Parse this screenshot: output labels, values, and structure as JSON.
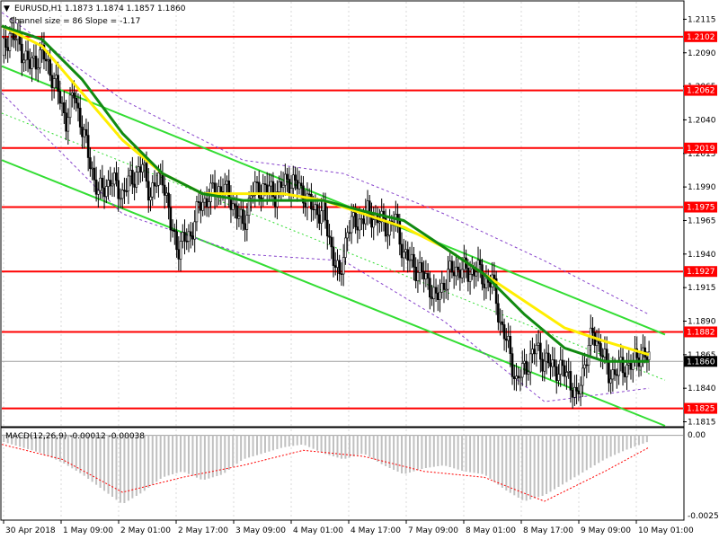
{
  "header": {
    "symbol_line": "EURUSD,H1  1.1873 1.1874 1.1857 1.1860",
    "channel_line": "Channel size = 86 Slope = -1.17"
  },
  "macd": {
    "label": "MACD(12,26,9) -0.00012 -0.00038",
    "ticks": [
      "0.00",
      "-0.00255"
    ]
  },
  "chart_data": [
    {
      "type": "candlestick",
      "title": "",
      "y_ticks": [
        "1.2115",
        "1.2090",
        "1.2065",
        "1.2040",
        "1.2015",
        "1.1990",
        "1.1965",
        "1.1940",
        "1.1915",
        "1.1890",
        "1.1865",
        "1.1840",
        "1.1815"
      ],
      "x_labels": [
        "30 Apr 2018",
        "1 May 09:00",
        "2 May 01:00",
        "2 May 17:00",
        "3 May 09:00",
        "4 May 01:00",
        "4 May 17:00",
        "7 May 09:00",
        "8 May 01:00",
        "8 May 17:00",
        "9 May 09:00",
        "10 May 01:00"
      ],
      "ylim": [
        1.1812,
        1.2128
      ],
      "levels": [
        "1.2102",
        "1.2062",
        "1.2019",
        "1.1975",
        "1.1927",
        "1.1882",
        "1.1825"
      ],
      "current_price": "1.1860",
      "close_path": [
        [
          0,
          1.2088
        ],
        [
          4,
          1.2105
        ],
        [
          8,
          1.2098
        ],
        [
          14,
          1.208
        ],
        [
          20,
          1.209
        ],
        [
          26,
          1.207
        ],
        [
          32,
          1.204
        ],
        [
          36,
          1.206
        ],
        [
          42,
          1.202
        ],
        [
          48,
          1.1985
        ],
        [
          54,
          1.1995
        ],
        [
          60,
          1.1985
        ],
        [
          64,
          1.1995
        ],
        [
          70,
          1.2005
        ],
        [
          74,
          1.1985
        ],
        [
          80,
          1.2
        ],
        [
          84,
          1.196
        ],
        [
          88,
          1.1945
        ],
        [
          94,
          1.1955
        ],
        [
          98,
          1.1975
        ],
        [
          104,
          1.1985
        ],
        [
          110,
          1.199
        ],
        [
          116,
          1.1975
        ],
        [
          120,
          1.196
        ],
        [
          124,
          1.1985
        ],
        [
          130,
          1.199
        ],
        [
          136,
          1.1985
        ],
        [
          142,
          1.1995
        ],
        [
          148,
          1.199
        ],
        [
          154,
          1.1975
        ],
        [
          160,
          1.197
        ],
        [
          164,
          1.1945
        ],
        [
          168,
          1.192
        ],
        [
          172,
          1.196
        ],
        [
          178,
          1.1965
        ],
        [
          182,
          1.197
        ],
        [
          188,
          1.1965
        ],
        [
          192,
          1.196
        ],
        [
          196,
          1.1965
        ],
        [
          200,
          1.194
        ],
        [
          206,
          1.193
        ],
        [
          212,
          1.192
        ],
        [
          216,
          1.1905
        ],
        [
          222,
          1.1925
        ],
        [
          228,
          1.193
        ],
        [
          232,
          1.1925
        ],
        [
          236,
          1.193
        ],
        [
          240,
          1.192
        ],
        [
          244,
          1.192
        ],
        [
          248,
          1.189
        ],
        [
          252,
          1.187
        ],
        [
          256,
          1.1845
        ],
        [
          262,
          1.186
        ],
        [
          266,
          1.187
        ],
        [
          270,
          1.186
        ],
        [
          276,
          1.1855
        ],
        [
          282,
          1.185
        ],
        [
          286,
          1.183
        ],
        [
          290,
          1.186
        ],
        [
          294,
          1.188
        ],
        [
          298,
          1.187
        ],
        [
          302,
          1.185
        ],
        [
          308,
          1.1855
        ],
        [
          314,
          1.1858
        ],
        [
          318,
          1.1868
        ],
        [
          322,
          1.186
        ]
      ],
      "ma_fast_path": [
        [
          0,
          1.211
        ],
        [
          20,
          1.2095
        ],
        [
          40,
          1.206
        ],
        [
          60,
          1.2025
        ],
        [
          80,
          1.2
        ],
        [
          100,
          1.1985
        ],
        [
          120,
          1.1985
        ],
        [
          140,
          1.1985
        ],
        [
          160,
          1.198
        ],
        [
          180,
          1.197
        ],
        [
          200,
          1.196
        ],
        [
          220,
          1.1945
        ],
        [
          240,
          1.1925
        ],
        [
          260,
          1.1905
        ],
        [
          280,
          1.1885
        ],
        [
          300,
          1.1875
        ],
        [
          322,
          1.1865
        ]
      ],
      "ma_slow_path": [
        [
          0,
          1.211
        ],
        [
          20,
          1.21
        ],
        [
          40,
          1.207
        ],
        [
          60,
          1.203
        ],
        [
          80,
          1.2
        ],
        [
          100,
          1.1985
        ],
        [
          120,
          1.198
        ],
        [
          140,
          1.198
        ],
        [
          160,
          1.198
        ],
        [
          180,
          1.1972
        ],
        [
          200,
          1.1965
        ],
        [
          220,
          1.1945
        ],
        [
          240,
          1.1925
        ],
        [
          260,
          1.1895
        ],
        [
          280,
          1.187
        ],
        [
          300,
          1.186
        ],
        [
          322,
          1.186
        ]
      ],
      "channel_upper": [
        [
          0,
          1.208
        ],
        [
          330,
          1.188
        ]
      ],
      "channel_lower": [
        [
          0,
          1.201
        ],
        [
          330,
          1.1812
        ]
      ],
      "channel_mid": [
        [
          0,
          1.2045
        ],
        [
          330,
          1.1846
        ]
      ],
      "envelope_upper": [
        [
          0,
          1.212
        ],
        [
          60,
          1.2055
        ],
        [
          120,
          1.201
        ],
        [
          170,
          1.2
        ],
        [
          220,
          1.197
        ],
        [
          270,
          1.1935
        ],
        [
          322,
          1.1895
        ]
      ],
      "envelope_lower": [
        [
          0,
          1.206
        ],
        [
          60,
          1.197
        ],
        [
          120,
          1.194
        ],
        [
          170,
          1.1935
        ],
        [
          220,
          1.189
        ],
        [
          270,
          1.183
        ],
        [
          322,
          1.184
        ]
      ]
    },
    {
      "type": "bar",
      "title": "",
      "ylim": [
        -0.0028,
        0.0002
      ],
      "macd_bars": [
        [
          0,
          -0.0002
        ],
        [
          10,
          -0.0004
        ],
        [
          20,
          -0.0006
        ],
        [
          30,
          -0.0009
        ],
        [
          40,
          -0.0013
        ],
        [
          50,
          -0.0018
        ],
        [
          60,
          -0.0023
        ],
        [
          70,
          -0.0019
        ],
        [
          80,
          -0.0014
        ],
        [
          90,
          -0.0012
        ],
        [
          100,
          -0.0015
        ],
        [
          110,
          -0.0013
        ],
        [
          120,
          -0.0008
        ],
        [
          130,
          -0.0006
        ],
        [
          140,
          -0.0004
        ],
        [
          150,
          -0.0003
        ],
        [
          160,
          -0.0006
        ],
        [
          170,
          -0.0008
        ],
        [
          180,
          -0.0006
        ],
        [
          190,
          -0.001
        ],
        [
          200,
          -0.0013
        ],
        [
          210,
          -0.0011
        ],
        [
          220,
          -0.001
        ],
        [
          230,
          -0.0012
        ],
        [
          240,
          -0.0013
        ],
        [
          250,
          -0.0018
        ],
        [
          260,
          -0.0022
        ],
        [
          270,
          -0.002
        ],
        [
          280,
          -0.0016
        ],
        [
          290,
          -0.0012
        ],
        [
          300,
          -0.0008
        ],
        [
          310,
          -0.0005
        ],
        [
          322,
          -0.0002
        ]
      ],
      "signal_path": [
        [
          0,
          -0.0003
        ],
        [
          30,
          -0.0008
        ],
        [
          60,
          -0.0019
        ],
        [
          90,
          -0.0014
        ],
        [
          120,
          -0.001
        ],
        [
          150,
          -0.0005
        ],
        [
          180,
          -0.0007
        ],
        [
          210,
          -0.0012
        ],
        [
          240,
          -0.0014
        ],
        [
          270,
          -0.0022
        ],
        [
          300,
          -0.0012
        ],
        [
          322,
          -0.0004
        ]
      ]
    }
  ],
  "colors": {
    "level": "#ff0000",
    "label_bg": "#ff0000",
    "ma_fast": "#ffee00",
    "ma_slow": "#118a11",
    "channel": "#33dd33",
    "envelope": "#8844cc",
    "candle": "#000000",
    "macd_bar": "#c0c0c0",
    "signal": "#ff0000",
    "current_bg": "#000000"
  }
}
